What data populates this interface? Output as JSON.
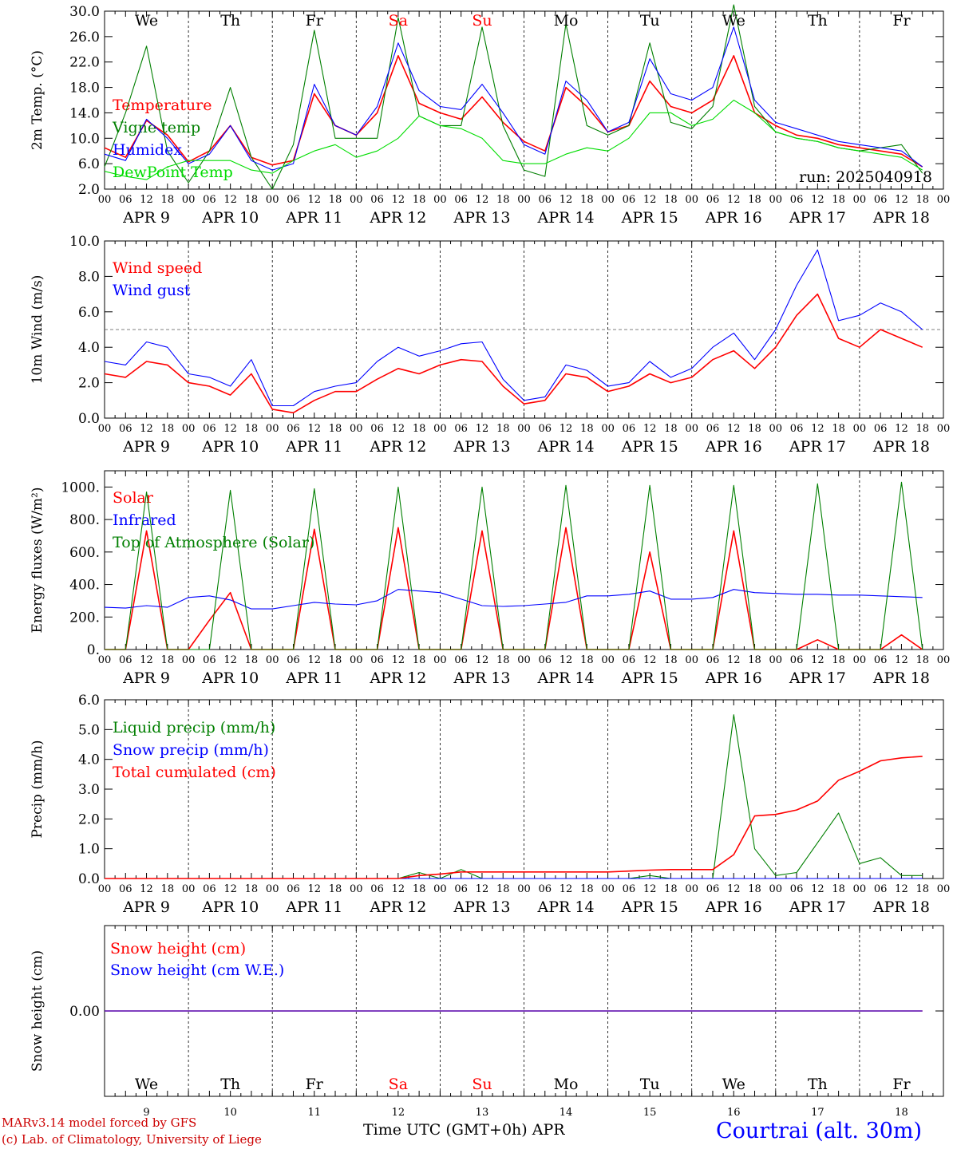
{
  "chart_data": {
    "type": "line",
    "x_hours": [
      0,
      6,
      12,
      18,
      24,
      30,
      36,
      42,
      48,
      54,
      60,
      66,
      72,
      78,
      84,
      90,
      96,
      102,
      108,
      114,
      120,
      126,
      132,
      138,
      144,
      150,
      156,
      162,
      168,
      174,
      180,
      186,
      192,
      198,
      204,
      210,
      216,
      222,
      228,
      234
    ],
    "dates": [
      "APR 9",
      "APR 10",
      "APR 11",
      "APR 12",
      "APR 13",
      "APR 14",
      "APR 15",
      "APR 16",
      "APR 17",
      "APR 18"
    ],
    "hour_ticks": [
      "00",
      "06",
      "12",
      "18"
    ],
    "weekdays": [
      "We",
      "Th",
      "Fr",
      "Sa",
      "Su",
      "Mo",
      "Tu",
      "We",
      "Th",
      "Fr"
    ],
    "weekend_color": "#ff0000",
    "weekend_index": [
      3,
      4
    ],
    "day_numbers": [
      "9",
      "10",
      "11",
      "12",
      "13",
      "14",
      "15",
      "16",
      "17",
      "18"
    ],
    "run_label": "run: 2025040918",
    "panels": [
      {
        "id": "temperature",
        "ylabel": "2m Temp. (°C)",
        "ylim": [
          2,
          30
        ],
        "yticks": [
          "2.0",
          "6.0",
          "10.0",
          "14.0",
          "18.0",
          "22.0",
          "26.0",
          "30.0"
        ],
        "ytick_values": [
          2,
          6,
          10,
          14,
          18,
          22,
          26,
          30
        ],
        "series": [
          {
            "name": "Temperature",
            "color": "#ff0000",
            "values": [
              8.5,
              7.0,
              12.8,
              10.5,
              6.3,
              8.0,
              12.0,
              7.0,
              5.8,
              6.5,
              17.0,
              12.0,
              10.5,
              14.0,
              23.0,
              15.5,
              14.0,
              13.0,
              16.5,
              12.5,
              9.5,
              8.0,
              18.0,
              15.0,
              11.0,
              12.0,
              19.0,
              15.0,
              14.0,
              16.0,
              23.0,
              14.0,
              12.0,
              10.5,
              10.0,
              9.0,
              8.5,
              8.0,
              7.5,
              5.5
            ]
          },
          {
            "name": "Vigne temp",
            "color": "#007f00",
            "values": [
              5.5,
              14.0,
              24.5,
              8.0,
              3.0,
              8.0,
              18.0,
              7.0,
              2.0,
              9.0,
              27.0,
              10.0,
              10.0,
              10.0,
              29.0,
              13.5,
              12.0,
              12.0,
              27.5,
              12.0,
              5.0,
              4.0,
              28.0,
              12.0,
              10.5,
              12.0,
              25.0,
              12.5,
              11.5,
              15.0,
              31.0,
              15.0,
              11.0,
              10.0,
              9.5,
              8.5,
              8.0,
              8.5,
              9.0,
              4.5
            ]
          },
          {
            "name": "Humidex",
            "color": "#0000ff",
            "values": [
              7.5,
              6.5,
              13.0,
              10.0,
              6.0,
              7.5,
              12.0,
              6.5,
              5.0,
              6.0,
              18.5,
              12.0,
              10.5,
              15.0,
              25.0,
              17.5,
              15.0,
              14.5,
              18.5,
              14.0,
              9.0,
              7.5,
              19.0,
              16.0,
              11.0,
              12.5,
              22.5,
              17.0,
              16.0,
              18.0,
              27.5,
              16.0,
              12.5,
              11.5,
              10.5,
              9.5,
              9.0,
              8.5,
              8.0,
              5.5
            ]
          },
          {
            "name": "DewPoint Temp",
            "color": "#00dd00",
            "values": [
              4.8,
              4.0,
              3.5,
              5.5,
              6.5,
              6.5,
              6.5,
              5.0,
              4.5,
              6.5,
              8.0,
              9.0,
              7.0,
              8.0,
              10.0,
              13.5,
              12.0,
              11.5,
              10.0,
              6.5,
              6.0,
              6.0,
              7.5,
              8.5,
              8.0,
              10.0,
              14.0,
              14.0,
              12.0,
              13.0,
              16.0,
              14.0,
              11.0,
              10.0,
              9.5,
              8.5,
              8.0,
              7.5,
              7.0,
              5.0
            ]
          }
        ]
      },
      {
        "id": "wind",
        "ylabel": "10m Wind (m/s)",
        "ylim": [
          0,
          10
        ],
        "yticks": [
          "0.0",
          "2.0",
          "4.0",
          "6.0",
          "8.0",
          "10.0"
        ],
        "ytick_values": [
          0,
          2,
          4,
          6,
          8,
          10
        ],
        "reference_line": 5,
        "series": [
          {
            "name": "Wind speed",
            "color": "#ff0000",
            "values": [
              2.5,
              2.3,
              3.2,
              3.0,
              2.0,
              1.8,
              1.3,
              2.5,
              0.5,
              0.3,
              1.0,
              1.5,
              1.5,
              2.2,
              2.8,
              2.5,
              3.0,
              3.3,
              3.2,
              1.8,
              0.8,
              1.0,
              2.5,
              2.3,
              1.5,
              1.8,
              2.5,
              2.0,
              2.3,
              3.3,
              3.8,
              2.8,
              4.0,
              5.8,
              7.0,
              4.5,
              4.0,
              5.0,
              4.5,
              4.0
            ]
          },
          {
            "name": "Wind gust",
            "color": "#0000ff",
            "values": [
              3.2,
              3.0,
              4.3,
              4.0,
              2.5,
              2.3,
              1.8,
              3.3,
              0.7,
              0.7,
              1.5,
              1.8,
              2.0,
              3.2,
              4.0,
              3.5,
              3.8,
              4.2,
              4.3,
              2.2,
              1.0,
              1.2,
              3.0,
              2.7,
              1.8,
              2.0,
              3.2,
              2.3,
              2.8,
              4.0,
              4.8,
              3.3,
              5.0,
              7.5,
              9.5,
              5.5,
              5.8,
              6.5,
              6.0,
              5.0
            ]
          }
        ]
      },
      {
        "id": "energy",
        "ylabel": "Energy fluxes (W/m²)",
        "ylim": [
          0,
          1100
        ],
        "yticks": [
          "0.",
          "200.",
          "400.",
          "600.",
          "800.",
          "1000."
        ],
        "ytick_values": [
          0,
          200,
          400,
          600,
          800,
          1000
        ],
        "series": [
          {
            "name": "Solar",
            "color": "#ff0000",
            "values": [
              0,
              0,
              730,
              0,
              0,
              180,
              350,
              0,
              0,
              0,
              740,
              0,
              0,
              0,
              750,
              0,
              0,
              0,
              730,
              0,
              0,
              0,
              750,
              0,
              0,
              0,
              600,
              0,
              0,
              0,
              730,
              0,
              0,
              0,
              60,
              0,
              0,
              0,
              90,
              0
            ]
          },
          {
            "name": "Infrared",
            "color": "#0000ff",
            "values": [
              260,
              255,
              270,
              260,
              320,
              330,
              305,
              250,
              250,
              270,
              290,
              280,
              275,
              300,
              370,
              360,
              350,
              310,
              270,
              265,
              270,
              280,
              290,
              330,
              330,
              340,
              360,
              310,
              310,
              320,
              370,
              350,
              345,
              340,
              340,
              335,
              335,
              330,
              325,
              320
            ]
          },
          {
            "name": "Top of Atmosphere (Solar)",
            "color": "#007f00",
            "values": [
              0,
              0,
              970,
              0,
              0,
              0,
              980,
              0,
              0,
              0,
              990,
              0,
              0,
              0,
              1000,
              0,
              0,
              0,
              1000,
              0,
              0,
              0,
              1010,
              0,
              0,
              0,
              1010,
              0,
              0,
              0,
              1010,
              0,
              0,
              0,
              1020,
              0,
              0,
              0,
              1030,
              0
            ]
          }
        ]
      },
      {
        "id": "precip",
        "ylabel": "Precip (mm/h)",
        "ylim": [
          0,
          6
        ],
        "yticks": [
          "0.0",
          "1.0",
          "2.0",
          "3.0",
          "4.0",
          "5.0",
          "6.0"
        ],
        "ytick_values": [
          0,
          1,
          2,
          3,
          4,
          5,
          6
        ],
        "series": [
          {
            "name": "Liquid precip (mm/h)",
            "color": "#007f00",
            "values": [
              0,
              0,
              0,
              0,
              0,
              0,
              0,
              0,
              0,
              0,
              0,
              0,
              0,
              0,
              0,
              0.2,
              0,
              0.3,
              0,
              0,
              0,
              0,
              0,
              0,
              0,
              0,
              0.1,
              0,
              0,
              0,
              5.5,
              1.0,
              0.1,
              0.2,
              1.2,
              2.2,
              0.5,
              0.7,
              0.1,
              0.1
            ]
          },
          {
            "name": "Snow precip (mm/h)",
            "color": "#0000ff",
            "values": [
              0,
              0,
              0,
              0,
              0,
              0,
              0,
              0,
              0,
              0,
              0,
              0,
              0,
              0,
              0,
              0,
              0,
              0,
              0,
              0,
              0,
              0,
              0,
              0,
              0,
              0,
              0,
              0,
              0,
              0,
              0,
              0,
              0,
              0,
              0,
              0,
              0,
              0,
              0,
              0
            ]
          },
          {
            "name": "Total cumulated (cm)",
            "color": "#ff0000",
            "values": [
              0,
              0,
              0,
              0,
              0,
              0,
              0,
              0,
              0,
              0,
              0,
              0,
              0,
              0,
              0,
              0.1,
              0.15,
              0.22,
              0.22,
              0.22,
              0.22,
              0.22,
              0.22,
              0.22,
              0.22,
              0.25,
              0.28,
              0.3,
              0.3,
              0.3,
              0.8,
              2.1,
              2.15,
              2.3,
              2.6,
              3.3,
              3.6,
              3.95,
              4.05,
              4.1
            ]
          }
        ]
      },
      {
        "id": "snow",
        "ylabel": "Snow height (cm)",
        "ylim": [
          -1,
          1
        ],
        "yticks": [
          "0.00"
        ],
        "ytick_values": [
          0
        ],
        "series": [
          {
            "name": "Snow height (cm)",
            "color": "#ff0000",
            "values": [
              0,
              0,
              0,
              0,
              0,
              0,
              0,
              0,
              0,
              0,
              0,
              0,
              0,
              0,
              0,
              0,
              0,
              0,
              0,
              0,
              0,
              0,
              0,
              0,
              0,
              0,
              0,
              0,
              0,
              0,
              0,
              0,
              0,
              0,
              0,
              0,
              0,
              0,
              0,
              0
            ]
          },
          {
            "name": "Snow height (cm W.E.)",
            "color": "#0000ff",
            "values": [
              0,
              0,
              0,
              0,
              0,
              0,
              0,
              0,
              0,
              0,
              0,
              0,
              0,
              0,
              0,
              0,
              0,
              0,
              0,
              0,
              0,
              0,
              0,
              0,
              0,
              0,
              0,
              0,
              0,
              0,
              0,
              0,
              0,
              0,
              0,
              0,
              0,
              0,
              0,
              0
            ]
          }
        ]
      }
    ],
    "xlabel": "Time UTC (GMT+0h) APR"
  },
  "footer": {
    "model": "MARv3.14 model forced by GFS",
    "credit": "(c) Lab. of Climatology, University of Liege",
    "station": "Courtrai (alt. 30m)",
    "model_color": "#cc0000",
    "station_color": "#0000ff"
  }
}
